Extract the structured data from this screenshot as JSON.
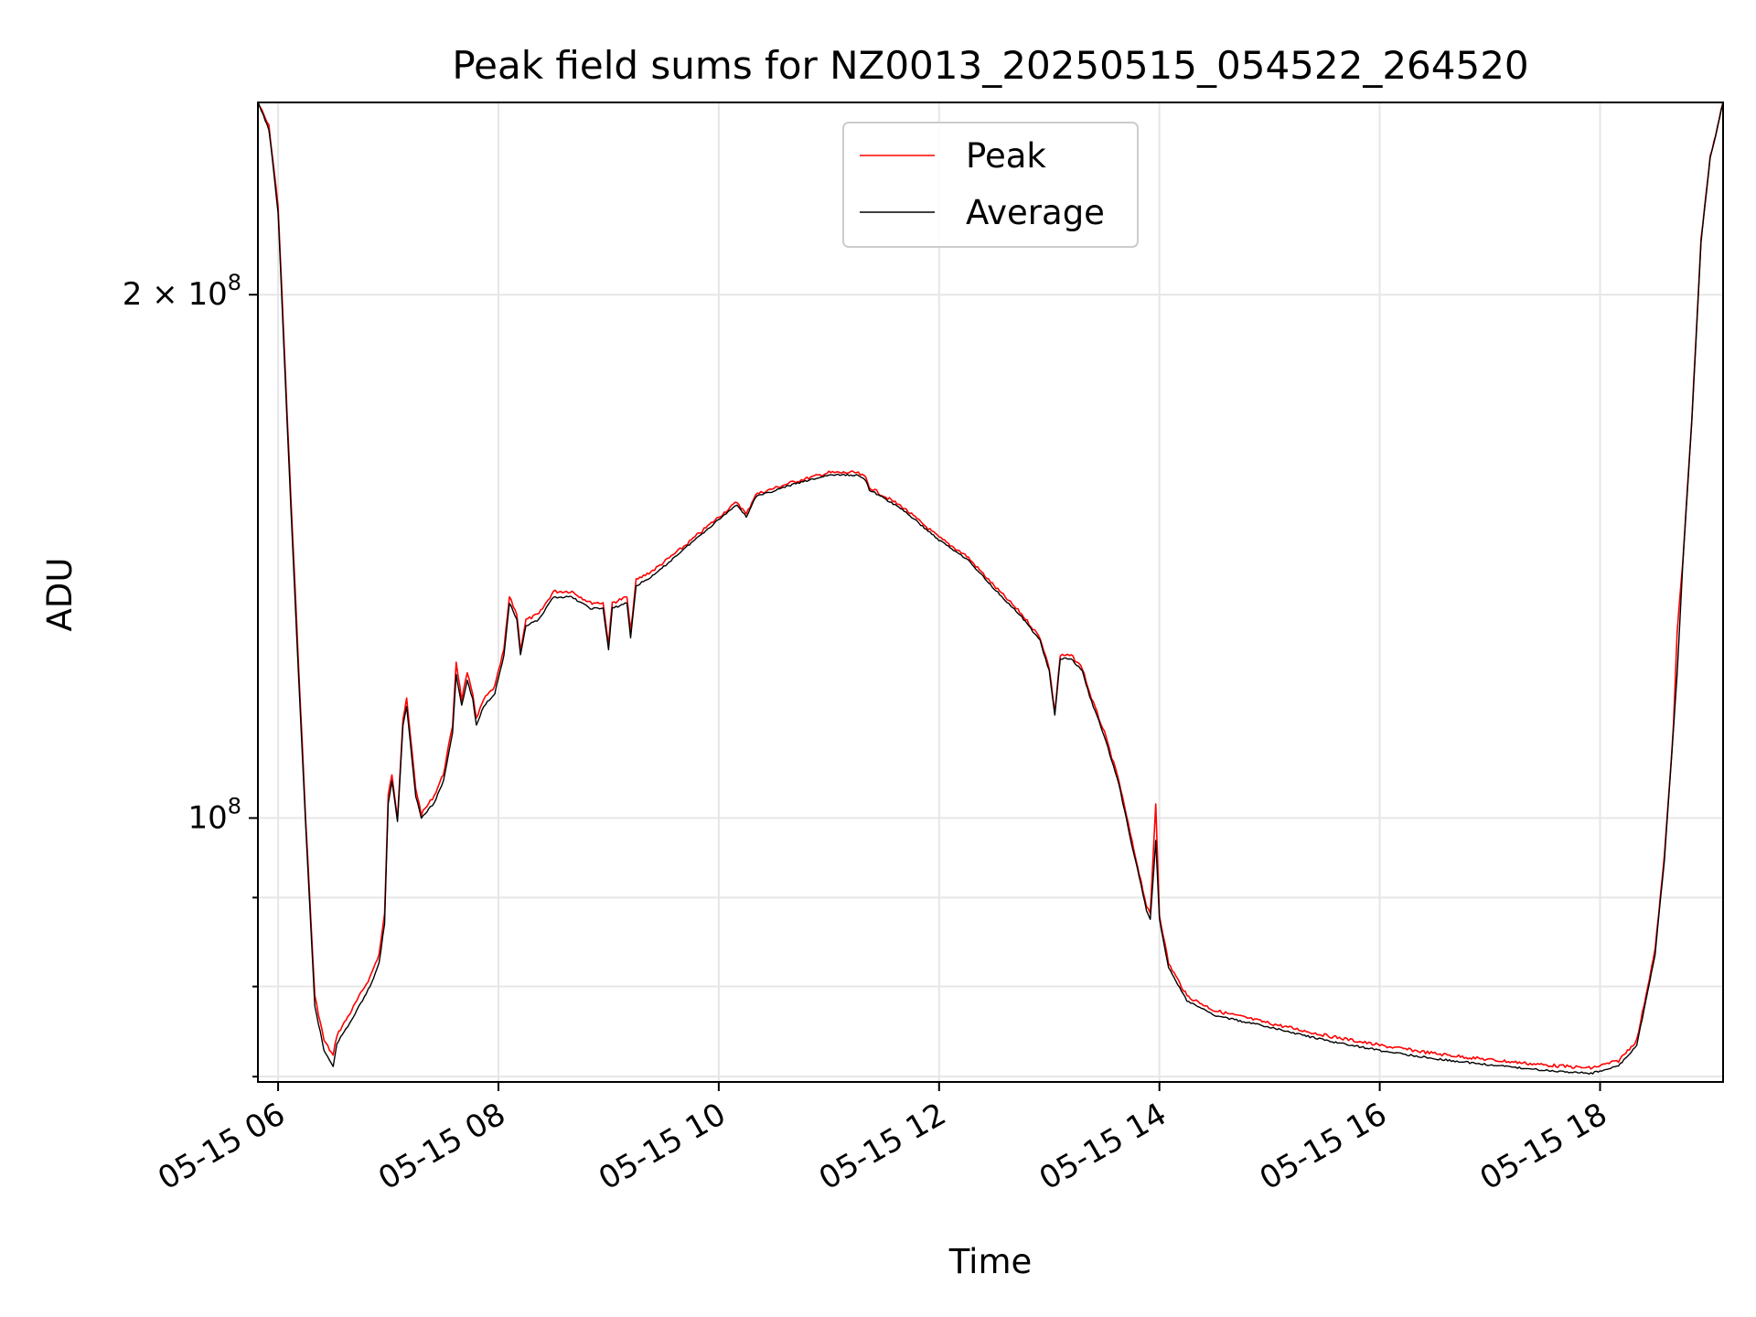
{
  "chart_data": {
    "type": "line",
    "title": "Peak field sums for NZ0013_20250515_054522_264520",
    "xlabel": "Time",
    "ylabel": "ADU",
    "y_scale": "log",
    "grid": true,
    "legend_position": "top-center",
    "xlim": [
      "2025-05-15T05:49",
      "2025-05-15T19:07"
    ],
    "ylim": [
      70500000,
      258000000
    ],
    "x_ticks": [
      {
        "t": "2025-05-15T06:00",
        "label": "05-15 06"
      },
      {
        "t": "2025-05-15T08:00",
        "label": "05-15 08"
      },
      {
        "t": "2025-05-15T10:00",
        "label": "05-15 10"
      },
      {
        "t": "2025-05-15T12:00",
        "label": "05-15 12"
      },
      {
        "t": "2025-05-15T14:00",
        "label": "05-15 14"
      },
      {
        "t": "2025-05-15T16:00",
        "label": "05-15 16"
      },
      {
        "t": "2025-05-15T18:00",
        "label": "05-15 18"
      }
    ],
    "y_major_ticks": [
      {
        "value": 100000000,
        "base": "10",
        "exp": "8"
      },
      {
        "value": 200000000,
        "base": "2 × 10",
        "exp": "8"
      }
    ],
    "y_minor_ticks": [
      71000000,
      80000000,
      90000000,
      300000000
    ],
    "series": [
      {
        "name": "Peak",
        "color": "#ff0000",
        "points": [
          [
            "2025-05-15T05:49",
            258000000
          ],
          [
            "2025-05-15T05:55",
            250000000
          ],
          [
            "2025-05-15T06:00",
            225000000
          ],
          [
            "2025-05-15T06:05",
            170000000
          ],
          [
            "2025-05-15T06:10",
            130000000
          ],
          [
            "2025-05-15T06:15",
            100000000
          ],
          [
            "2025-05-15T06:20",
            79000000
          ],
          [
            "2025-05-15T06:25",
            74500000
          ],
          [
            "2025-05-15T06:30",
            73000000
          ],
          [
            "2025-05-15T06:32",
            75000000
          ],
          [
            "2025-05-15T06:40",
            77500000
          ],
          [
            "2025-05-15T06:50",
            81000000
          ],
          [
            "2025-05-15T06:55",
            83500000
          ],
          [
            "2025-05-15T06:58",
            88000000
          ],
          [
            "2025-05-15T07:00",
            103000000
          ],
          [
            "2025-05-15T07:02",
            106000000
          ],
          [
            "2025-05-15T07:05",
            100000000
          ],
          [
            "2025-05-15T07:08",
            114000000
          ],
          [
            "2025-05-15T07:10",
            117000000
          ],
          [
            "2025-05-15T07:15",
            104000000
          ],
          [
            "2025-05-15T07:18",
            100500000
          ],
          [
            "2025-05-15T07:25",
            103000000
          ],
          [
            "2025-05-15T07:30",
            106000000
          ],
          [
            "2025-05-15T07:35",
            113000000
          ],
          [
            "2025-05-15T07:37",
            123000000
          ],
          [
            "2025-05-15T07:40",
            117000000
          ],
          [
            "2025-05-15T07:43",
            121000000
          ],
          [
            "2025-05-15T07:46",
            118000000
          ],
          [
            "2025-05-15T07:48",
            114000000
          ],
          [
            "2025-05-15T07:52",
            117000000
          ],
          [
            "2025-05-15T07:58",
            119000000
          ],
          [
            "2025-05-15T08:03",
            125000000
          ],
          [
            "2025-05-15T08:06",
            134000000
          ],
          [
            "2025-05-15T08:10",
            131000000
          ],
          [
            "2025-05-15T08:12",
            125000000
          ],
          [
            "2025-05-15T08:15",
            130000000
          ],
          [
            "2025-05-15T08:22",
            131000000
          ],
          [
            "2025-05-15T08:30",
            135000000
          ],
          [
            "2025-05-15T08:40",
            135000000
          ],
          [
            "2025-05-15T08:50",
            133000000
          ],
          [
            "2025-05-15T08:57",
            133000000
          ],
          [
            "2025-05-15T09:00",
            126000000
          ],
          [
            "2025-05-15T09:02",
            133000000
          ],
          [
            "2025-05-15T09:10",
            134000000
          ],
          [
            "2025-05-15T09:12",
            128000000
          ],
          [
            "2025-05-15T09:15",
            137000000
          ],
          [
            "2025-05-15T09:25",
            139000000
          ],
          [
            "2025-05-15T09:40",
            143000000
          ],
          [
            "2025-05-15T10:00",
            149000000
          ],
          [
            "2025-05-15T10:10",
            152000000
          ],
          [
            "2025-05-15T10:15",
            149500000
          ],
          [
            "2025-05-15T10:20",
            153500000
          ],
          [
            "2025-05-15T10:40",
            156000000
          ],
          [
            "2025-05-15T11:00",
            158000000
          ],
          [
            "2025-05-15T11:15",
            158000000
          ],
          [
            "2025-05-15T11:20",
            157000000
          ],
          [
            "2025-05-15T11:22",
            155000000
          ],
          [
            "2025-05-15T11:40",
            151000000
          ],
          [
            "2025-05-15T12:00",
            145000000
          ],
          [
            "2025-05-15T12:15",
            141500000
          ],
          [
            "2025-05-15T12:30",
            136000000
          ],
          [
            "2025-05-15T12:45",
            131000000
          ],
          [
            "2025-05-15T12:55",
            127000000
          ],
          [
            "2025-05-15T13:00",
            122000000
          ],
          [
            "2025-05-15T13:03",
            115000000
          ],
          [
            "2025-05-15T13:06",
            124000000
          ],
          [
            "2025-05-15T13:12",
            124000000
          ],
          [
            "2025-05-15T13:18",
            122000000
          ],
          [
            "2025-05-15T13:22",
            118000000
          ],
          [
            "2025-05-15T13:30",
            112000000
          ],
          [
            "2025-05-15T13:38",
            105000000
          ],
          [
            "2025-05-15T13:45",
            97000000
          ],
          [
            "2025-05-15T13:50",
            92000000
          ],
          [
            "2025-05-15T13:53",
            89000000
          ],
          [
            "2025-05-15T13:55",
            88000000
          ],
          [
            "2025-05-15T13:58",
            102000000
          ],
          [
            "2025-05-15T14:00",
            88000000
          ],
          [
            "2025-05-15T14:05",
            82500000
          ],
          [
            "2025-05-15T14:15",
            79000000
          ],
          [
            "2025-05-15T14:30",
            77500000
          ],
          [
            "2025-05-15T15:00",
            76200000
          ],
          [
            "2025-05-15T15:30",
            75000000
          ],
          [
            "2025-05-15T16:00",
            74000000
          ],
          [
            "2025-05-15T16:30",
            73200000
          ],
          [
            "2025-05-15T17:00",
            72600000
          ],
          [
            "2025-05-15T17:30",
            72100000
          ],
          [
            "2025-05-15T17:55",
            71800000
          ],
          [
            "2025-05-15T18:10",
            72500000
          ],
          [
            "2025-05-15T18:20",
            74500000
          ],
          [
            "2025-05-15T18:30",
            84000000
          ],
          [
            "2025-05-15T18:35",
            95000000
          ],
          [
            "2025-05-15T18:40",
            113000000
          ],
          [
            "2025-05-15T18:42",
            128000000
          ],
          [
            "2025-05-15T18:45",
            140000000
          ],
          [
            "2025-05-15T18:50",
            170000000
          ],
          [
            "2025-05-15T18:55",
            215000000
          ],
          [
            "2025-05-15T19:00",
            240000000
          ],
          [
            "2025-05-15T19:07",
            258000000
          ]
        ]
      },
      {
        "name": "Average",
        "color": "#000000",
        "points": [
          [
            "2025-05-15T05:49",
            258000000
          ],
          [
            "2025-05-15T05:55",
            249000000
          ],
          [
            "2025-05-15T06:00",
            223000000
          ],
          [
            "2025-05-15T06:05",
            168000000
          ],
          [
            "2025-05-15T06:10",
            128000000
          ],
          [
            "2025-05-15T06:15",
            99000000
          ],
          [
            "2025-05-15T06:20",
            78000000
          ],
          [
            "2025-05-15T06:25",
            73500000
          ],
          [
            "2025-05-15T06:30",
            72000000
          ],
          [
            "2025-05-15T06:32",
            74200000
          ],
          [
            "2025-05-15T06:40",
            76500000
          ],
          [
            "2025-05-15T06:50",
            80000000
          ],
          [
            "2025-05-15T06:55",
            82500000
          ],
          [
            "2025-05-15T06:58",
            87000000
          ],
          [
            "2025-05-15T07:00",
            102000000
          ],
          [
            "2025-05-15T07:02",
            105000000
          ],
          [
            "2025-05-15T07:05",
            99500000
          ],
          [
            "2025-05-15T07:08",
            113000000
          ],
          [
            "2025-05-15T07:10",
            116000000
          ],
          [
            "2025-05-15T07:15",
            103000000
          ],
          [
            "2025-05-15T07:18",
            100000000
          ],
          [
            "2025-05-15T07:25",
            102000000
          ],
          [
            "2025-05-15T07:30",
            105000000
          ],
          [
            "2025-05-15T07:35",
            112000000
          ],
          [
            "2025-05-15T07:37",
            121000000
          ],
          [
            "2025-05-15T07:40",
            116000000
          ],
          [
            "2025-05-15T07:43",
            120000000
          ],
          [
            "2025-05-15T07:46",
            117000000
          ],
          [
            "2025-05-15T07:48",
            113000000
          ],
          [
            "2025-05-15T07:52",
            116000000
          ],
          [
            "2025-05-15T07:58",
            118000000
          ],
          [
            "2025-05-15T08:03",
            124000000
          ],
          [
            "2025-05-15T08:06",
            133000000
          ],
          [
            "2025-05-15T08:10",
            130000000
          ],
          [
            "2025-05-15T08:12",
            124000000
          ],
          [
            "2025-05-15T08:15",
            129000000
          ],
          [
            "2025-05-15T08:22",
            130000000
          ],
          [
            "2025-05-15T08:30",
            134000000
          ],
          [
            "2025-05-15T08:40",
            134000000
          ],
          [
            "2025-05-15T08:50",
            132000000
          ],
          [
            "2025-05-15T08:57",
            132000000
          ],
          [
            "2025-05-15T09:00",
            125000000
          ],
          [
            "2025-05-15T09:02",
            132000000
          ],
          [
            "2025-05-15T09:10",
            133000000
          ],
          [
            "2025-05-15T09:12",
            127000000
          ],
          [
            "2025-05-15T09:15",
            136000000
          ],
          [
            "2025-05-15T09:25",
            138000000
          ],
          [
            "2025-05-15T09:40",
            142500000
          ],
          [
            "2025-05-15T10:00",
            148500000
          ],
          [
            "2025-05-15T10:10",
            151500000
          ],
          [
            "2025-05-15T10:15",
            149000000
          ],
          [
            "2025-05-15T10:20",
            153000000
          ],
          [
            "2025-05-15T10:40",
            155500000
          ],
          [
            "2025-05-15T11:00",
            157500000
          ],
          [
            "2025-05-15T11:15",
            157500000
          ],
          [
            "2025-05-15T11:20",
            156500000
          ],
          [
            "2025-05-15T11:22",
            154500000
          ],
          [
            "2025-05-15T11:40",
            150500000
          ],
          [
            "2025-05-15T12:00",
            144500000
          ],
          [
            "2025-05-15T12:15",
            141000000
          ],
          [
            "2025-05-15T12:30",
            135500000
          ],
          [
            "2025-05-15T12:45",
            130500000
          ],
          [
            "2025-05-15T12:55",
            126500000
          ],
          [
            "2025-05-15T13:00",
            121500000
          ],
          [
            "2025-05-15T13:03",
            114500000
          ],
          [
            "2025-05-15T13:06",
            123500000
          ],
          [
            "2025-05-15T13:12",
            123500000
          ],
          [
            "2025-05-15T13:18",
            121500000
          ],
          [
            "2025-05-15T13:22",
            117500000
          ],
          [
            "2025-05-15T13:30",
            111500000
          ],
          [
            "2025-05-15T13:38",
            104500000
          ],
          [
            "2025-05-15T13:45",
            96500000
          ],
          [
            "2025-05-15T13:50",
            91500000
          ],
          [
            "2025-05-15T13:53",
            88500000
          ],
          [
            "2025-05-15T13:55",
            87500000
          ],
          [
            "2025-05-15T13:58",
            97000000
          ],
          [
            "2025-05-15T14:00",
            87500000
          ],
          [
            "2025-05-15T14:05",
            82000000
          ],
          [
            "2025-05-15T14:15",
            78500000
          ],
          [
            "2025-05-15T14:30",
            77000000
          ],
          [
            "2025-05-15T15:00",
            75800000
          ],
          [
            "2025-05-15T15:30",
            74500000
          ],
          [
            "2025-05-15T16:00",
            73500000
          ],
          [
            "2025-05-15T16:30",
            72700000
          ],
          [
            "2025-05-15T17:00",
            72100000
          ],
          [
            "2025-05-15T17:30",
            71600000
          ],
          [
            "2025-05-15T17:55",
            71300000
          ],
          [
            "2025-05-15T18:10",
            72000000
          ],
          [
            "2025-05-15T18:20",
            74000000
          ],
          [
            "2025-05-15T18:30",
            83500000
          ],
          [
            "2025-05-15T18:35",
            94500000
          ],
          [
            "2025-05-15T18:40",
            112500000
          ],
          [
            "2025-05-15T18:42",
            121000000
          ],
          [
            "2025-05-15T18:45",
            139500000
          ],
          [
            "2025-05-15T18:50",
            169500000
          ],
          [
            "2025-05-15T18:55",
            214500000
          ],
          [
            "2025-05-15T19:00",
            239500000
          ],
          [
            "2025-05-15T19:07",
            258000000
          ]
        ]
      }
    ]
  }
}
